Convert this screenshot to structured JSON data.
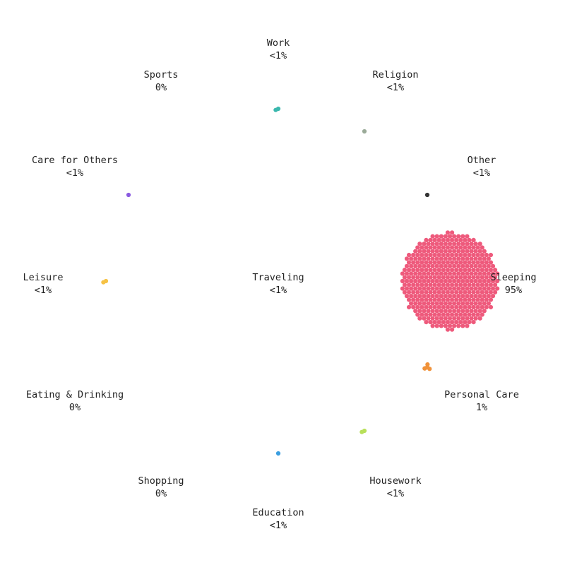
{
  "chart_data": {
    "type": "scatter",
    "title": "",
    "nodes": [
      {
        "name": "Work",
        "pct": "<1%",
        "color": "#3bb8ae",
        "dots": 2
      },
      {
        "name": "Religion",
        "pct": "<1%",
        "color": "#9aaa98",
        "dots": 1
      },
      {
        "name": "Other",
        "pct": "<1%",
        "color": "#333333",
        "dots": 1
      },
      {
        "name": "Sleeping",
        "pct": "95%",
        "color": "#ee5a7c",
        "dots": 460
      },
      {
        "name": "Personal Care",
        "pct": "1%",
        "color": "#f0923a",
        "dots": 5
      },
      {
        "name": "Housework",
        "pct": "<1%",
        "color": "#b8e05a",
        "dots": 2
      },
      {
        "name": "Education",
        "pct": "<1%",
        "color": "#3b9ee0",
        "dots": 1
      },
      {
        "name": "Shopping",
        "pct": "0%",
        "color": "#dddddd",
        "dots": 0
      },
      {
        "name": "Eating & Drinking",
        "pct": "0%",
        "color": "#dddddd",
        "dots": 0
      },
      {
        "name": "Leisure",
        "pct": "<1%",
        "color": "#f6c244",
        "dots": 2
      },
      {
        "name": "Care for Others",
        "pct": "<1%",
        "color": "#8a5ae0",
        "dots": 1
      },
      {
        "name": "Sports",
        "pct": "0%",
        "color": "#dddddd",
        "dots": 0
      },
      {
        "name": "Traveling",
        "pct": "<1%",
        "color": "#999999",
        "dots": 0
      }
    ]
  }
}
